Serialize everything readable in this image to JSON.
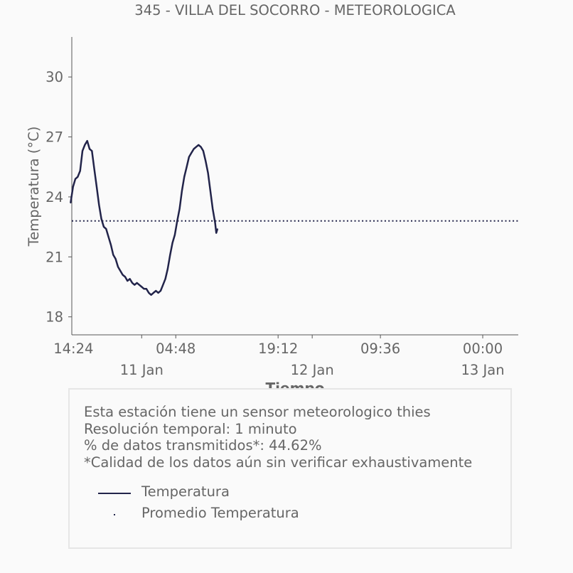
{
  "chart_data": {
    "type": "line",
    "title": "345 - VILLA DEL SOCORRO - METEOROLOGICA",
    "xlabel": "Tiempo",
    "ylabel": "Temperatura (°C)",
    "x_ticks": [
      "14:24",
      "04:48",
      "19:12",
      "09:36",
      "00:00"
    ],
    "x_ticks_secondary": [
      "11 Jan",
      "12 Jan",
      "13 Jan"
    ],
    "y_ticks": [
      18,
      21,
      24,
      27,
      30
    ],
    "ylim": [
      17.1,
      32.0
    ],
    "xlim": [
      "2024-01-10 14:10",
      "2024-01-13 05:00"
    ],
    "grid": false,
    "series": [
      {
        "name": "Temperatura",
        "style": "solid",
        "color": "#22244a",
        "points": [
          [
            "2024-01-10 14:00",
            23.7
          ],
          [
            "2024-01-10 14:20",
            24.5
          ],
          [
            "2024-01-10 14:40",
            24.9
          ],
          [
            "2024-01-10 15:00",
            25.0
          ],
          [
            "2024-01-10 15:20",
            25.3
          ],
          [
            "2024-01-10 15:40",
            26.3
          ],
          [
            "2024-01-10 16:00",
            26.6
          ],
          [
            "2024-01-10 16:20",
            26.8
          ],
          [
            "2024-01-10 16:40",
            26.4
          ],
          [
            "2024-01-10 17:00",
            26.3
          ],
          [
            "2024-01-10 17:20",
            25.4
          ],
          [
            "2024-01-10 17:40",
            24.5
          ],
          [
            "2024-01-10 18:00",
            23.6
          ],
          [
            "2024-01-10 18:20",
            22.9
          ],
          [
            "2024-01-10 18:40",
            22.5
          ],
          [
            "2024-01-10 19:00",
            22.4
          ],
          [
            "2024-01-10 19:20",
            22.0
          ],
          [
            "2024-01-10 19:40",
            21.6
          ],
          [
            "2024-01-10 20:00",
            21.1
          ],
          [
            "2024-01-10 20:20",
            20.9
          ],
          [
            "2024-01-10 20:40",
            20.5
          ],
          [
            "2024-01-10 21:00",
            20.3
          ],
          [
            "2024-01-10 21:20",
            20.1
          ],
          [
            "2024-01-10 21:40",
            20.0
          ],
          [
            "2024-01-10 22:00",
            19.8
          ],
          [
            "2024-01-10 22:20",
            19.9
          ],
          [
            "2024-01-10 22:40",
            19.7
          ],
          [
            "2024-01-10 23:00",
            19.6
          ],
          [
            "2024-01-10 23:20",
            19.7
          ],
          [
            "2024-01-10 23:40",
            19.6
          ],
          [
            "2024-01-11 00:00",
            19.5
          ],
          [
            "2024-01-11 00:20",
            19.4
          ],
          [
            "2024-01-11 00:40",
            19.4
          ],
          [
            "2024-01-11 01:00",
            19.2
          ],
          [
            "2024-01-11 01:20",
            19.1
          ],
          [
            "2024-01-11 01:40",
            19.2
          ],
          [
            "2024-01-11 02:00",
            19.3
          ],
          [
            "2024-01-11 02:20",
            19.2
          ],
          [
            "2024-01-11 02:40",
            19.3
          ],
          [
            "2024-01-11 03:00",
            19.6
          ],
          [
            "2024-01-11 03:20",
            19.9
          ],
          [
            "2024-01-11 03:40",
            20.4
          ],
          [
            "2024-01-11 04:00",
            21.1
          ],
          [
            "2024-01-11 04:20",
            21.7
          ],
          [
            "2024-01-11 04:40",
            22.1
          ],
          [
            "2024-01-11 05:00",
            22.8
          ],
          [
            "2024-01-11 05:20",
            23.4
          ],
          [
            "2024-01-11 05:40",
            24.3
          ],
          [
            "2024-01-11 06:00",
            25.0
          ],
          [
            "2024-01-11 06:20",
            25.5
          ],
          [
            "2024-01-11 06:40",
            26.0
          ],
          [
            "2024-01-11 07:00",
            26.2
          ],
          [
            "2024-01-11 07:20",
            26.4
          ],
          [
            "2024-01-11 07:40",
            26.5
          ],
          [
            "2024-01-11 08:00",
            26.6
          ],
          [
            "2024-01-11 08:20",
            26.5
          ],
          [
            "2024-01-11 08:40",
            26.3
          ],
          [
            "2024-01-11 09:00",
            25.8
          ],
          [
            "2024-01-11 09:20",
            25.2
          ],
          [
            "2024-01-11 09:40",
            24.3
          ],
          [
            "2024-01-11 10:00",
            23.4
          ],
          [
            "2024-01-11 10:20",
            22.7
          ],
          [
            "2024-01-11 10:30",
            22.2
          ],
          [
            "2024-01-11 10:40",
            22.4
          ]
        ]
      },
      {
        "name": "Promedio Temperatura",
        "style": "dotted",
        "color": "#22244a",
        "value": 22.8
      }
    ]
  },
  "info": {
    "lines": [
      "Esta estación tiene un sensor meteorologico thies",
      "Resolución temporal: 1 minuto",
      "% de datos transmitidos*: 44.62%",
      "*Calidad de los datos aún sin verificar exhaustivamente"
    ]
  },
  "legend": {
    "items": [
      {
        "label": "Temperatura"
      },
      {
        "label": "Promedio Temperatura"
      }
    ]
  }
}
